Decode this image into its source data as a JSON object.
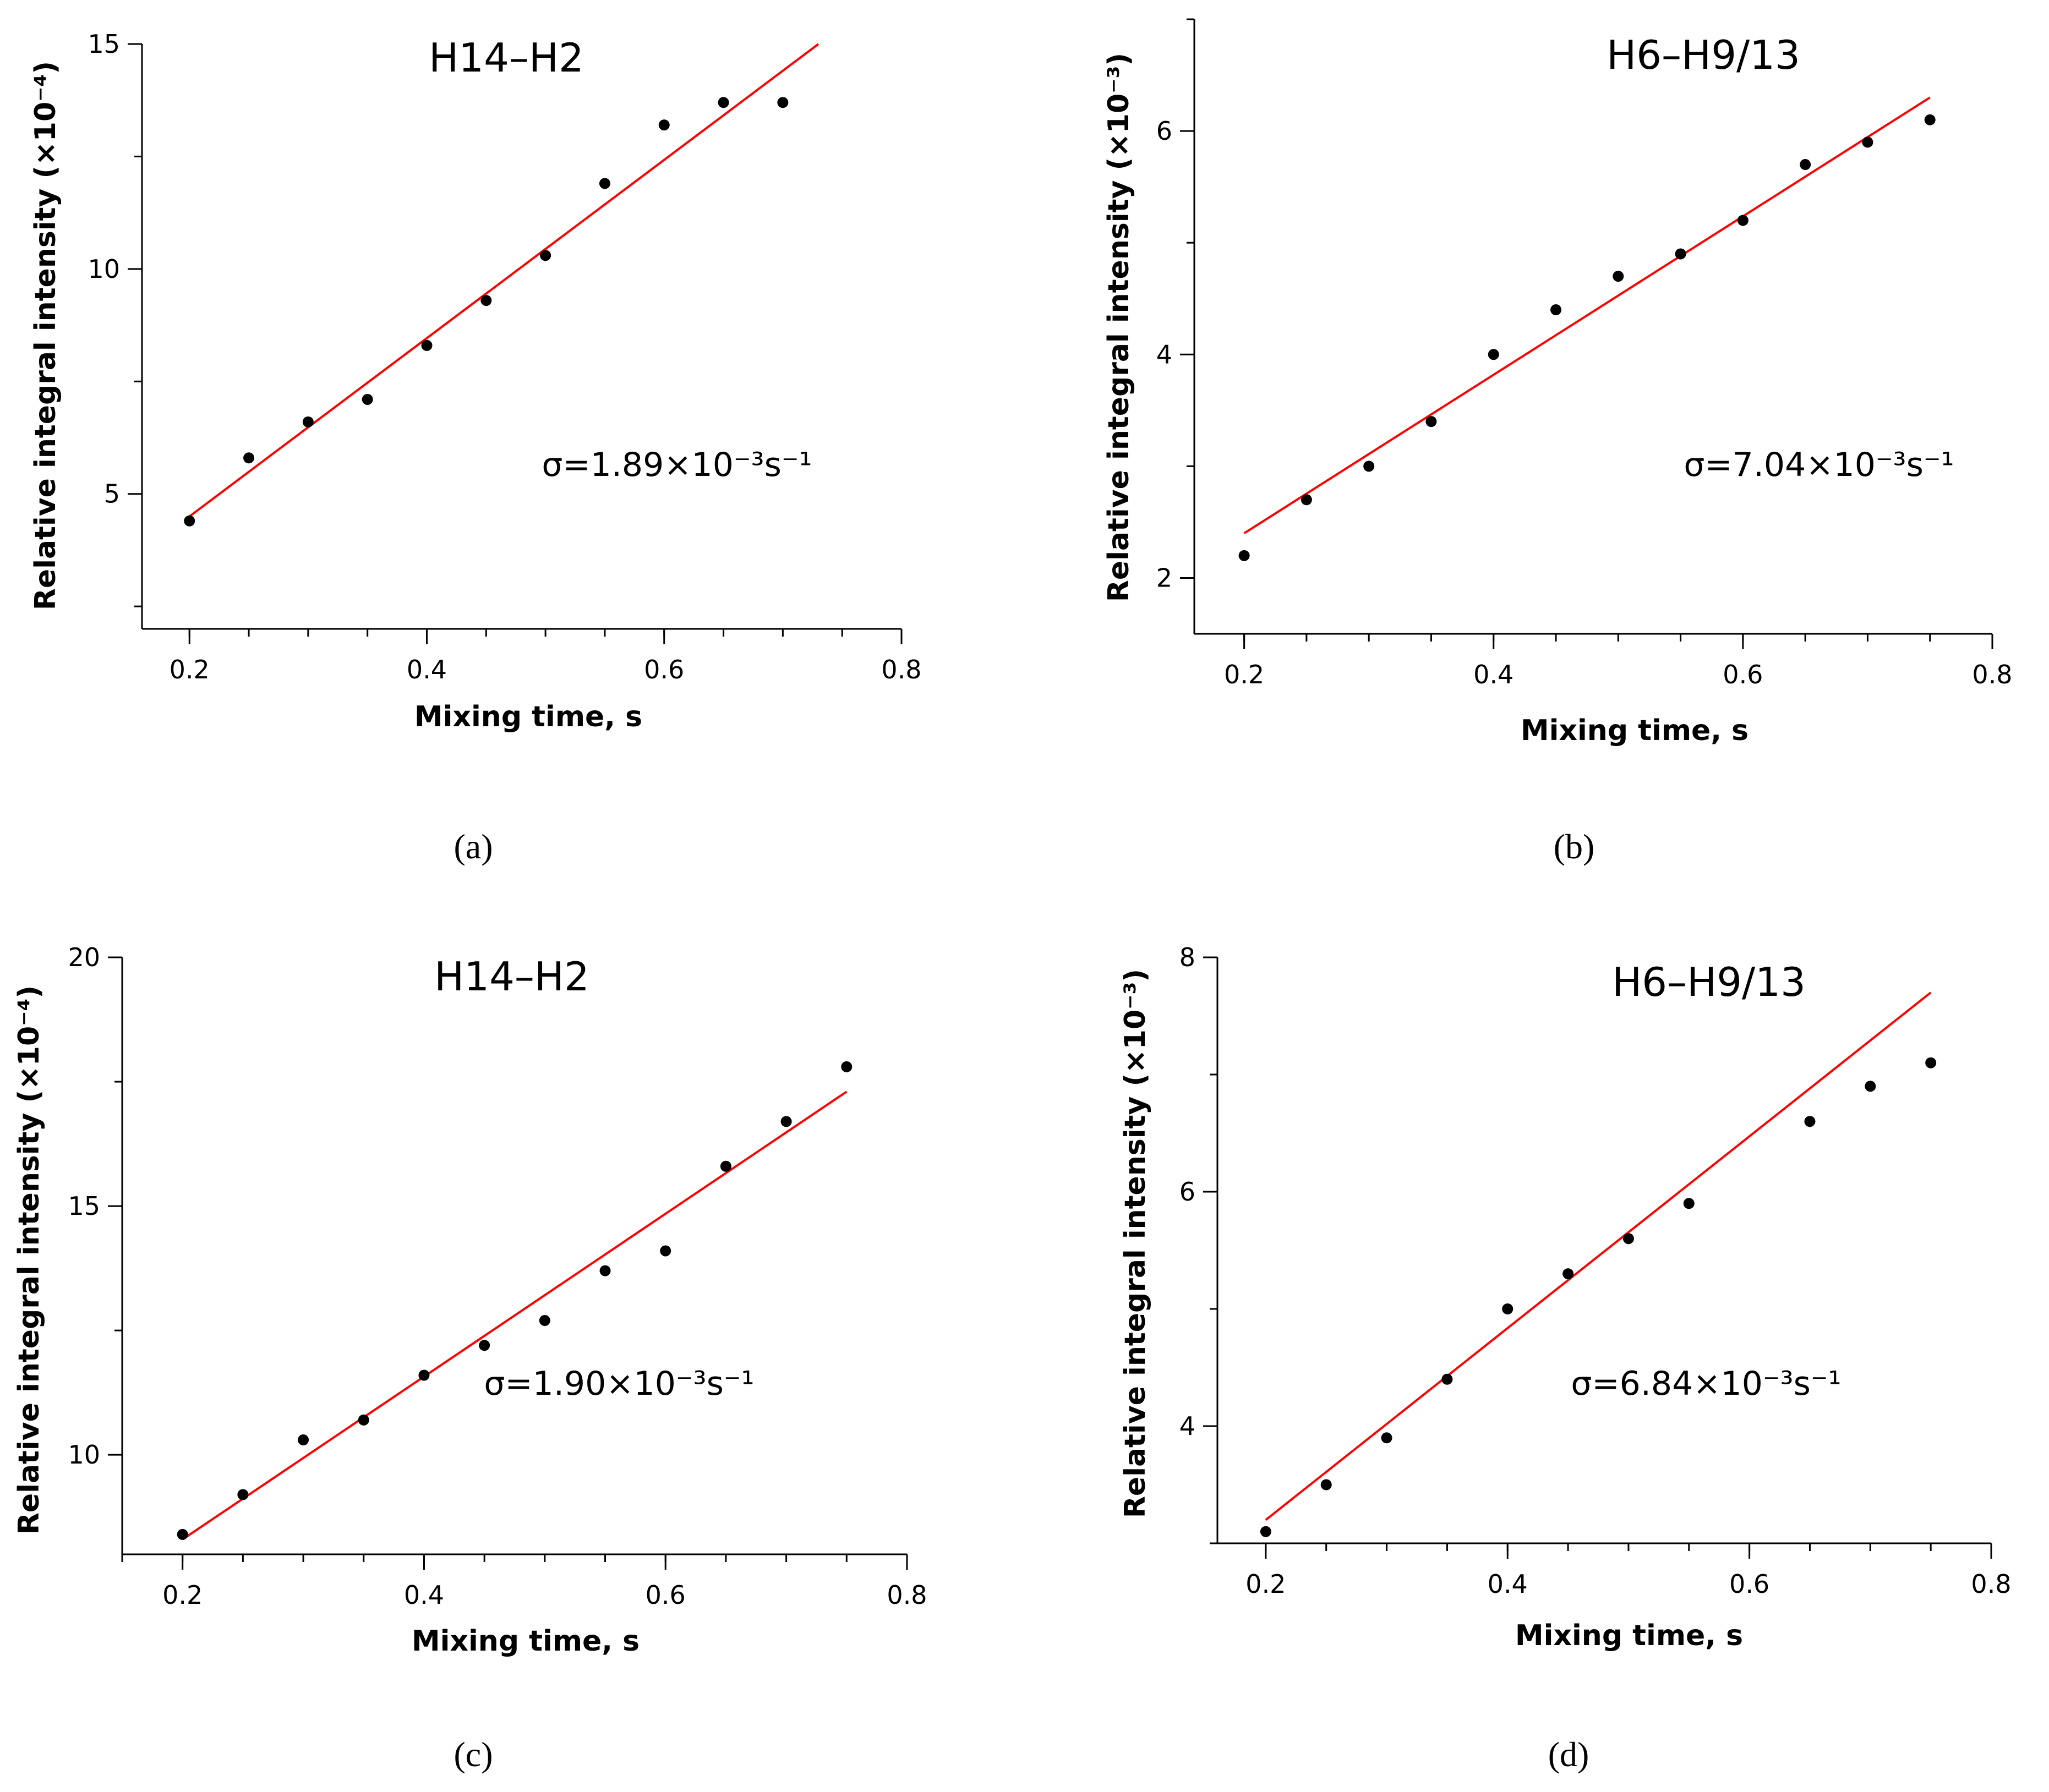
{
  "chart_data": [
    {
      "panel": "(a)",
      "type": "scatter",
      "title": "H14–H2",
      "xlabel": "Mixing time, s",
      "ylabel": "Relative integral intensity (×10⁻⁴)",
      "x_ticks": [
        "0.2",
        "0.4",
        "0.6",
        "0.8"
      ],
      "y_ticks": [
        "5",
        "10",
        "15"
      ],
      "xlim": [
        0.16,
        0.8
      ],
      "ylim": [
        2.0,
        15.0
      ],
      "x": [
        0.2,
        0.25,
        0.3,
        0.35,
        0.4,
        0.45,
        0.5,
        0.55,
        0.6,
        0.65,
        0.7
      ],
      "y": [
        4.4,
        5.8,
        6.6,
        7.1,
        8.3,
        9.3,
        10.3,
        11.9,
        13.2,
        13.7,
        13.7
      ],
      "fit": {
        "x": [
          0.2,
          0.73
        ],
        "y": [
          4.5,
          15.0
        ]
      },
      "annotation": "σ=1.89×10⁻³s⁻¹"
    },
    {
      "panel": "(b)",
      "type": "scatter",
      "title": "H6–H9/13",
      "xlabel": "Mixing time, s",
      "ylabel": "Relative integral intensity (×10⁻³)",
      "x_ticks": [
        "0.2",
        "0.4",
        "0.6",
        "0.8"
      ],
      "y_ticks": [
        "2",
        "4",
        "6"
      ],
      "xlim": [
        0.16,
        0.8
      ],
      "ylim": [
        1.5,
        7.0
      ],
      "x": [
        0.2,
        0.25,
        0.3,
        0.35,
        0.4,
        0.45,
        0.5,
        0.55,
        0.6,
        0.65,
        0.7,
        0.75
      ],
      "y": [
        2.2,
        2.7,
        3.0,
        3.4,
        4.0,
        4.4,
        4.7,
        4.9,
        5.2,
        5.7,
        5.9,
        6.1
      ],
      "fit": {
        "x": [
          0.2,
          0.75
        ],
        "y": [
          2.4,
          6.3
        ]
      },
      "annotation": "σ=7.04×10⁻³s⁻¹"
    },
    {
      "panel": "(c)",
      "type": "scatter",
      "title": "H14–H2",
      "xlabel": "Mixing time, s",
      "ylabel": "Relative integral intensity (×10⁻⁴)",
      "x_ticks": [
        "0.2",
        "0.4",
        "0.6",
        "0.8"
      ],
      "y_ticks": [
        "10",
        "15",
        "20"
      ],
      "xlim": [
        0.15,
        0.8
      ],
      "ylim": [
        8.0,
        20.0
      ],
      "x": [
        0.2,
        0.25,
        0.3,
        0.35,
        0.4,
        0.45,
        0.5,
        0.55,
        0.6,
        0.65,
        0.7,
        0.75
      ],
      "y": [
        8.4,
        9.2,
        10.3,
        10.7,
        11.6,
        12.2,
        12.7,
        13.7,
        14.1,
        15.8,
        16.7,
        17.8
      ],
      "fit": {
        "x": [
          0.2,
          0.75
        ],
        "y": [
          8.3,
          17.3
        ]
      },
      "annotation": "σ=1.90×10⁻³s⁻¹"
    },
    {
      "panel": "(d)",
      "type": "scatter",
      "title": "H6–H9/13",
      "xlabel": "Mixing time, s",
      "ylabel": "Relative integral intensity (×10⁻³)",
      "x_ticks": [
        "0.2",
        "0.4",
        "0.6",
        "0.8"
      ],
      "y_ticks": [
        "4",
        "6",
        "8"
      ],
      "xlim": [
        0.16,
        0.8
      ],
      "ylim": [
        3.0,
        8.0
      ],
      "x": [
        0.2,
        0.25,
        0.3,
        0.35,
        0.4,
        0.45,
        0.5,
        0.55,
        0.65,
        0.7,
        0.75
      ],
      "y": [
        3.1,
        3.5,
        3.9,
        4.4,
        5.0,
        5.3,
        5.6,
        5.9,
        6.6,
        6.9,
        7.1
      ],
      "fit": {
        "x": [
          0.2,
          0.75
        ],
        "y": [
          3.2,
          7.7
        ]
      },
      "annotation": "σ=6.84×10⁻³s⁻¹"
    }
  ]
}
